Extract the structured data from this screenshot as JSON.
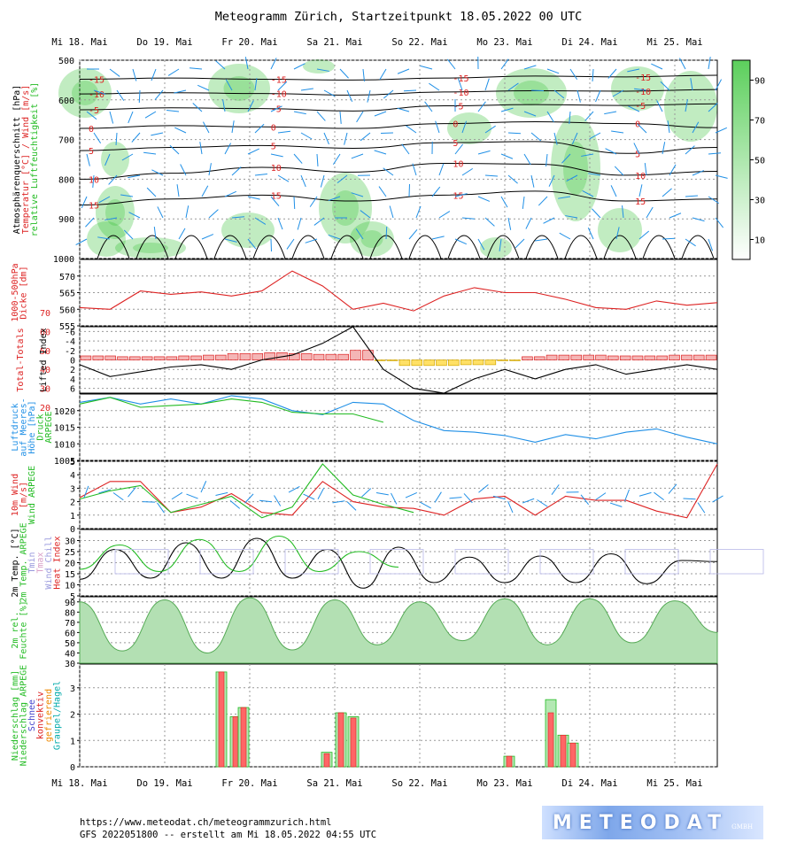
{
  "header": {
    "title": "Meteogramm Zürich, Startzeitpunkt 18.05.2022 00 UTC"
  },
  "day_labels": [
    "Mi 18. Mai",
    "Do 19. Mai",
    "Fr 20. Mai",
    "Sa 21. Mai",
    "So 22. Mai",
    "Mo 23. Mai",
    "Di 24. Mai",
    "Mi 25. Mai"
  ],
  "footer": {
    "url": "https://www.meteodat.ch/meteogrammzurich.html",
    "run": "GFS 2022051800 -- erstellt am Mi 18.05.2022 04:55 UTC"
  },
  "logo": {
    "text": "METEODAT",
    "suffix": "GMBH"
  },
  "colors": {
    "green": "#22bb22",
    "red": "#dd2222",
    "blue": "#1f8fe6",
    "black": "#000000",
    "grid": "#999999"
  },
  "chart_data": [
    {
      "id": "cross_section",
      "type": "heatmap",
      "ylabel": [
        "Atmosphärenquerschnitt [hPa]",
        "Temperatur [°C] / Wind [m/s]",
        "relative Luftfeuchtigkeit [%]"
      ],
      "ylim": [
        1000,
        500
      ],
      "y_ticks": [
        500,
        600,
        700,
        800,
        900,
        1000
      ],
      "colorbar_ticks": [
        10,
        30,
        50,
        70,
        90
      ],
      "isotherms": [
        {
          "label": "-15",
          "p": [
            548,
            545,
            548,
            550,
            545,
            540,
            542,
            538
          ]
        },
        {
          "label": "-10",
          "p": [
            585,
            582,
            584,
            588,
            580,
            577,
            578,
            574
          ]
        },
        {
          "label": "-5",
          "p": [
            625,
            620,
            622,
            628,
            615,
            612,
            614,
            610
          ]
        },
        {
          "label": "0",
          "p": [
            672,
            665,
            668,
            672,
            660,
            655,
            660,
            670
          ]
        },
        {
          "label": "5",
          "p": [
            728,
            720,
            715,
            722,
            708,
            705,
            735,
            720
          ]
        },
        {
          "label": "10",
          "p": [
            800,
            785,
            770,
            782,
            760,
            762,
            790,
            780
          ]
        },
        {
          "label": "15",
          "p": [
            865,
            850,
            840,
            855,
            840,
            830,
            855,
            850
          ]
        }
      ]
    },
    {
      "id": "thickness",
      "type": "line",
      "ylabel": [
        "1000-500hPa",
        "Dicke [dm]"
      ],
      "ylim": [
        555,
        575
      ],
      "y_ticks": [
        555,
        560,
        565,
        570
      ],
      "series": [
        {
          "values": [
            560.5,
            560,
            565.5,
            564.5,
            565.2,
            564,
            565.5,
            571.5,
            567,
            560,
            561.8,
            559.5,
            564,
            566.5,
            565,
            565,
            563,
            560.5,
            560,
            562.5,
            561.2,
            562
          ]
        }
      ]
    },
    {
      "id": "stability",
      "type": "bar",
      "ylabel": [
        "Total-Totals",
        "Lifted Index"
      ],
      "y_ticks": [
        -6,
        -4,
        -2,
        0,
        2,
        4,
        6
      ],
      "tt_ticks": [
        20,
        30,
        40,
        50,
        60,
        70
      ],
      "series": [
        {
          "name": "Lifted Index",
          "values": [
            1,
            3.5,
            2.5,
            1.5,
            1,
            2,
            0,
            -1,
            -3.5,
            -7,
            2,
            6,
            7,
            4,
            2,
            4,
            2,
            1,
            3,
            2,
            1,
            2
          ]
        },
        {
          "name": "Total-Totals",
          "values": [
            49,
            48,
            48,
            49,
            50,
            52,
            53,
            52,
            51,
            56,
            43,
            37,
            37,
            38,
            43,
            48,
            50,
            50,
            49,
            49,
            50,
            50
          ]
        }
      ]
    },
    {
      "id": "pressure",
      "type": "line",
      "ylabel": [
        "Luftdruck",
        "auf Meeres-",
        "Höhe [hPa]"
      ],
      "y_ticks": [
        1005,
        1010,
        1015,
        1020
      ],
      "series": [
        {
          "name": "Luftdruck auf Meeres-Höhe [hPa]",
          "values": [
            1022.5,
            1024,
            1022,
            1023.5,
            1022,
            1024.5,
            1023.5,
            1020,
            1018.8,
            1022.5,
            1022,
            1017,
            1014,
            1013.5,
            1012.5,
            1010.5,
            1012.8,
            1011.5,
            1013.5,
            1014.5,
            1012,
            1010
          ]
        },
        {
          "name": "Druck ARPEGE",
          "values": [
            1022,
            1024,
            1021,
            1021.5,
            1022,
            1023.5,
            1022.5,
            1019.5,
            1019,
            1019,
            1016.5
          ]
        }
      ]
    },
    {
      "id": "wind10m",
      "type": "line",
      "ylabel": [
        "10m Wind",
        "[m/s]",
        "Wind ARPEGE"
      ],
      "y_ticks": [
        0,
        1,
        2,
        3,
        4,
        5
      ],
      "series": [
        {
          "name": "10m Wind [m/s]",
          "values": [
            2.3,
            3.5,
            3.5,
            1.2,
            1.6,
            2.6,
            1.2,
            1,
            3.5,
            2,
            1.6,
            1.5,
            1,
            2.2,
            2.4,
            1,
            2.4,
            2.1,
            2.1,
            1.3,
            0.8,
            4.8
          ]
        },
        {
          "name": "Wind ARPEGE",
          "values": [
            2.2,
            2.8,
            3.2,
            1.2,
            1.8,
            2.4,
            0.8,
            1.6,
            4.8,
            2.5,
            1.8,
            1.2
          ]
        }
      ]
    },
    {
      "id": "temp2m",
      "type": "line",
      "ylabel": [
        "2m Temp. [°C]",
        "2m Temp. ARPEGE",
        "Tmin",
        "Tmax",
        "Wind Chill",
        "Heat Index"
      ],
      "y_ticks": [
        5,
        10,
        15,
        20,
        25,
        30
      ],
      "series": [
        {
          "name": "2m Temp. [°C]",
          "values": [
            12.5,
            26,
            13,
            29,
            13,
            31,
            13,
            26,
            8.5,
            27,
            11,
            22.5,
            11,
            23,
            11,
            24,
            10.5,
            21,
            20.5
          ]
        },
        {
          "name": "2m Temp. ARPEGE",
          "values": [
            17,
            28,
            16,
            30.5,
            16,
            32,
            16,
            25,
            18
          ]
        }
      ]
    },
    {
      "id": "rh2m",
      "type": "area",
      "ylabel": [
        "2m rel.",
        "Feuchte [%]"
      ],
      "y_ticks": [
        30,
        40,
        50,
        60,
        70,
        80,
        90
      ],
      "values": [
        90,
        42,
        92,
        40,
        94,
        43,
        92,
        48,
        90,
        52,
        93,
        48,
        93,
        50,
        91,
        60
      ]
    },
    {
      "id": "precip",
      "type": "bar",
      "ylabel": [
        "Niederschlag [mm]",
        "Niederschlag ARPEGE",
        "Schnee",
        "konvektiv",
        "gefrierend",
        "Graupel/Hagel"
      ],
      "y_ticks": [
        0,
        1,
        2,
        3
      ],
      "series": [
        {
          "name": "Niederschlag [mm]",
          "values": [
            3.6,
            1.9,
            2.25,
            0.5,
            2.05,
            1.85,
            0.4,
            2.05,
            1.2,
            0.9
          ]
        },
        {
          "name": "Niederschlag ARPEGE",
          "values": [
            3.6,
            1.9,
            2.25,
            0.55,
            2.05,
            1.9,
            0.4,
            2.55,
            1.2,
            0.9
          ]
        }
      ]
    }
  ]
}
